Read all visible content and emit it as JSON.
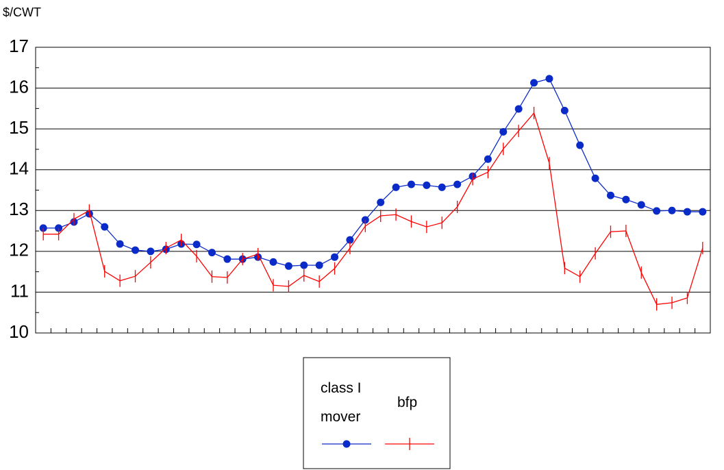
{
  "chart_data": {
    "type": "line",
    "ylabel": "$/CWT",
    "categories": [
      null,
      null,
      null,
      null,
      null,
      null,
      null,
      null,
      null,
      null,
      null,
      null,
      null,
      null,
      null,
      null,
      null,
      null,
      null,
      null,
      null,
      null,
      null,
      null,
      null,
      null,
      null,
      null,
      null,
      null,
      null,
      null,
      null,
      null,
      null,
      null,
      null,
      null,
      null,
      null,
      null,
      null,
      null,
      null
    ],
    "series": [
      {
        "name": "class I mover",
        "color": "#0a2bc8",
        "marker": "circle",
        "values": [
          12.57,
          12.57,
          12.72,
          12.92,
          12.6,
          12.18,
          12.03,
          12.0,
          12.05,
          12.18,
          12.17,
          11.97,
          11.81,
          11.81,
          11.86,
          11.74,
          11.64,
          11.66,
          11.66,
          11.86,
          12.28,
          12.77,
          13.2,
          13.57,
          13.64,
          13.62,
          13.57,
          13.64,
          13.84,
          14.26,
          14.93,
          15.49,
          16.13,
          16.23,
          15.45,
          14.6,
          13.79,
          13.37,
          13.27,
          13.14,
          12.99,
          13.0,
          12.97,
          12.97
        ]
      },
      {
        "name": "bfp",
        "color": "#ff0000",
        "marker": "tick",
        "values": [
          12.42,
          12.42,
          12.79,
          13.0,
          11.51,
          11.28,
          11.39,
          11.73,
          12.08,
          12.28,
          11.88,
          11.38,
          11.36,
          11.81,
          11.93,
          11.17,
          11.14,
          11.41,
          11.26,
          11.58,
          12.08,
          12.62,
          12.87,
          12.9,
          12.73,
          12.6,
          12.7,
          13.09,
          13.77,
          13.94,
          14.51,
          14.95,
          15.39,
          14.16,
          11.59,
          11.38,
          11.95,
          12.48,
          12.5,
          11.48,
          10.7,
          10.74,
          10.86,
          12.08
        ]
      }
    ],
    "ylim": [
      10,
      17
    ],
    "yticks": [
      10,
      11,
      12,
      13,
      14,
      15,
      16,
      17
    ],
    "grid": true
  }
}
